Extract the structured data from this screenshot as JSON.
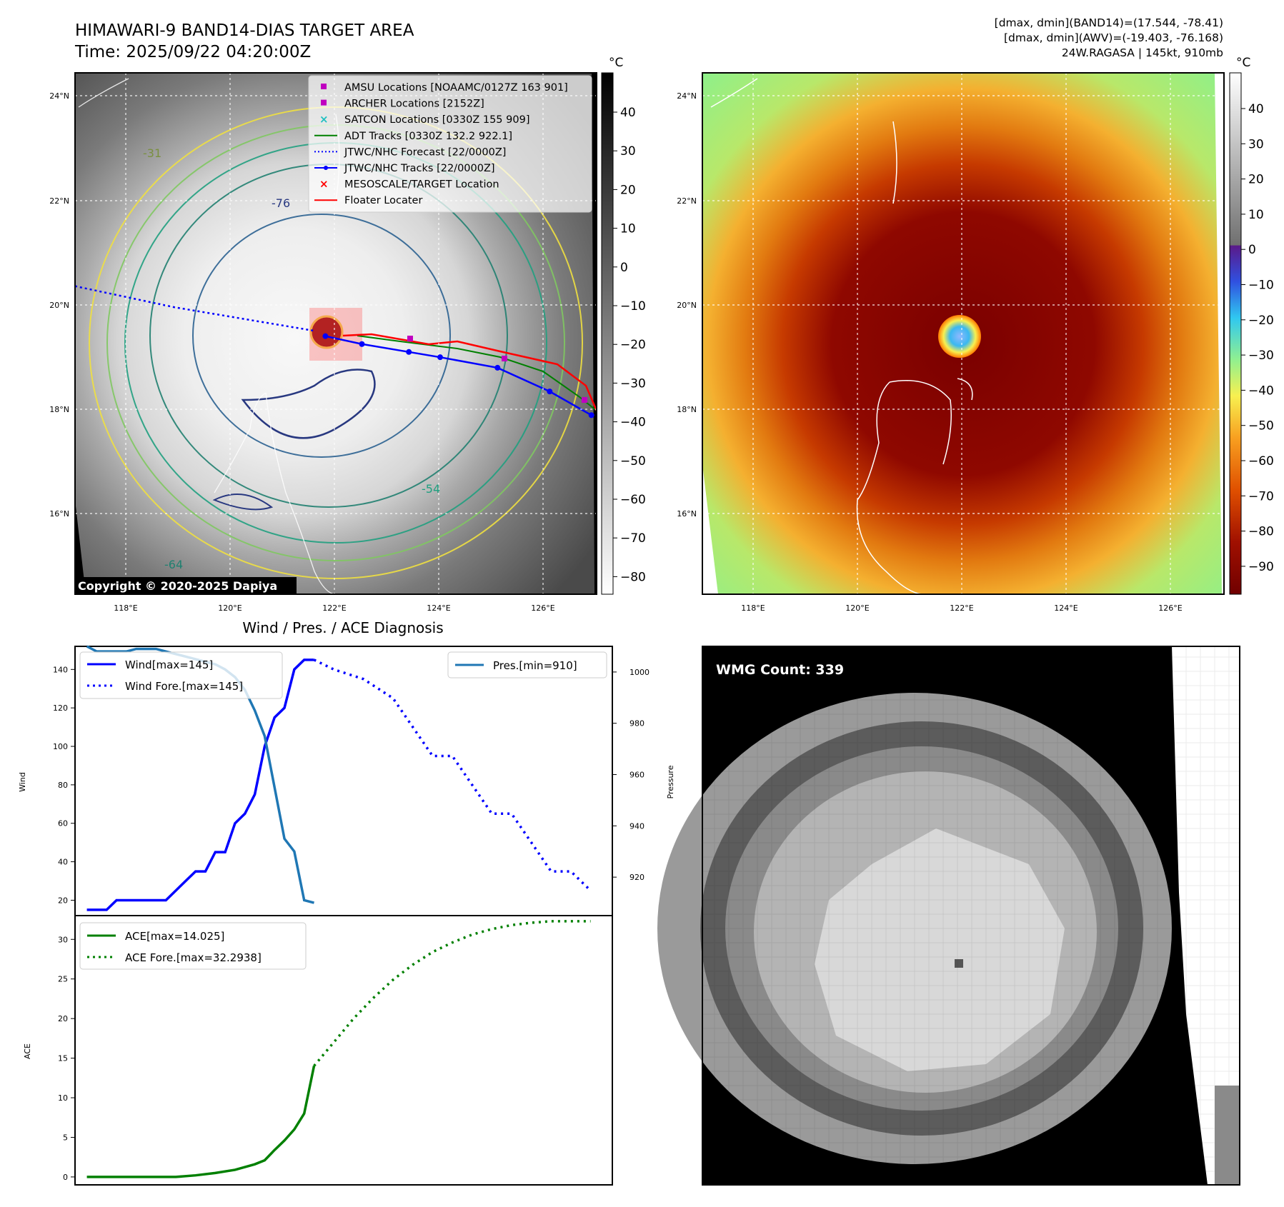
{
  "header": {
    "title_line1": "HIMAWARI-9 BAND14-DIAS TARGET AREA",
    "title_line2": "Time: 2025/09/22 04:20:00Z",
    "info_line1": "[dmax, dmin](BAND14)=(17.544, -78.41)",
    "info_line2": "[dmax, dmin](AWV)=(-19.403, -76.168)",
    "info_line3": "24W.RAGASA | 145kt, 910mb"
  },
  "satellite_panels": {
    "lat_labels": [
      "24°N",
      "22°N",
      "20°N",
      "18°N",
      "16°N"
    ],
    "lon_labels": [
      "118°E",
      "120°E",
      "122°E",
      "124°E",
      "126°E"
    ],
    "copyright": "Copyright © 2020-2025 Dapiya",
    "contour_labels": [
      "-76",
      "-64",
      "-54",
      "-31"
    ],
    "ir_colorbar": {
      "unit": "°C",
      "ticks": [
        "40",
        "30",
        "20",
        "10",
        "0",
        "−10",
        "−20",
        "−30",
        "−40",
        "−50",
        "−60",
        "−70",
        "−80"
      ]
    },
    "color_colorbar": {
      "unit": "°C",
      "ticks": [
        "40",
        "30",
        "20",
        "10",
        "0",
        "−10",
        "−20",
        "−30",
        "−40",
        "−50",
        "−60",
        "−70",
        "−80",
        "−90"
      ]
    },
    "legend": [
      {
        "label": "AMSU Locations [NOAAMC/0127Z 163 901]",
        "color": "#c000c0",
        "marker": "square"
      },
      {
        "label": "ARCHER Locations [2152Z]",
        "color": "#c000c0",
        "marker": "square"
      },
      {
        "label": "SATCON Locations [0330Z 155 909]",
        "color": "#20c0c0",
        "marker": "x"
      },
      {
        "label": "ADT Tracks [0330Z 132.2 922.1]",
        "color": "#008000",
        "marker": "line"
      },
      {
        "label": "JTWC/NHC Forecast [22/0000Z]",
        "color": "#0000ff",
        "marker": "dotted"
      },
      {
        "label": "JTWC/NHC Tracks [22/0000Z]",
        "color": "#0000ff",
        "marker": "line-dot"
      },
      {
        "label": "MESOSCALE/TARGET Location",
        "color": "#ff0000",
        "marker": "x"
      },
      {
        "label": "Floater Locater",
        "color": "#ff0000",
        "marker": "line"
      }
    ],
    "tracks": {
      "forecast_lon": [
        117.1,
        119.0,
        120.5,
        121.7
      ],
      "forecast_lat": [
        20.4,
        20.0,
        19.75,
        19.55
      ],
      "best_lon": [
        121.9,
        122.6,
        123.5,
        124.1,
        125.2,
        126.2,
        127.0
      ],
      "best_lat": [
        19.45,
        19.3,
        19.15,
        19.05,
        18.85,
        18.4,
        17.95
      ]
    }
  },
  "diagnosis": {
    "title": "Wind / Pres. / ACE Diagnosis",
    "wmg_label": "WMG Count: 339"
  },
  "chart_data": [
    {
      "type": "line",
      "title": "Wind / Pres. / ACE Diagnosis",
      "ylabel": "Wind",
      "y2label": "Pressure",
      "ylim": [
        12,
        152
      ],
      "y2lim": [
        905,
        1010
      ],
      "yticks": [
        "20",
        "40",
        "60",
        "80",
        "100",
        "120",
        "140"
      ],
      "y2ticks": [
        "920",
        "940",
        "960",
        "980",
        "1000"
      ],
      "series": [
        {
          "name": "Wind[max=145]",
          "color": "#0000ff",
          "style": "solid",
          "x": [
            0,
            1,
            2,
            3,
            4,
            5,
            6,
            7,
            8,
            9,
            10,
            11,
            12,
            13,
            14,
            15,
            16,
            17,
            18,
            19,
            20,
            21,
            22,
            23
          ],
          "values": [
            15,
            15,
            15,
            20,
            20,
            20,
            20,
            20,
            20,
            25,
            30,
            35,
            35,
            45,
            45,
            60,
            65,
            75,
            100,
            115,
            120,
            140,
            145,
            145
          ]
        },
        {
          "name": "Wind Fore.[max=145]",
          "color": "#0000ff",
          "style": "dotted",
          "x": [
            23,
            25,
            28,
            31,
            33,
            35,
            37,
            39,
            41,
            43,
            45,
            47,
            49,
            51
          ],
          "values": [
            145,
            140,
            135,
            125,
            110,
            95,
            95,
            80,
            65,
            65,
            50,
            35,
            35,
            25
          ]
        },
        {
          "name": "Pres.[min=910]",
          "color": "#1f77b4",
          "style": "solid",
          "axis": "right",
          "x": [
            0,
            1,
            2,
            3,
            4,
            5,
            6,
            7,
            8,
            9,
            10,
            11,
            12,
            13,
            14,
            15,
            16,
            17,
            18,
            19,
            20,
            21,
            22,
            23
          ],
          "values": [
            1010,
            1008,
            1008,
            1008,
            1008,
            1009,
            1009,
            1009,
            1008,
            1007,
            1006,
            1005,
            1004,
            1003,
            1001,
            998,
            993,
            985,
            975,
            955,
            935,
            930,
            911,
            910
          ]
        }
      ]
    },
    {
      "type": "line",
      "ylabel": "ACE",
      "ylim": [
        -1,
        33
      ],
      "yticks": [
        "0",
        "5",
        "10",
        "15",
        "20",
        "25",
        "30"
      ],
      "series": [
        {
          "name": "ACE[max=14.025]",
          "color": "#008000",
          "style": "solid",
          "x": [
            0,
            3,
            6,
            9,
            11,
            13,
            15,
            17,
            18,
            19,
            20,
            21,
            22,
            23
          ],
          "values": [
            0,
            0,
            0,
            0,
            0.2,
            0.5,
            0.9,
            1.6,
            2.1,
            3.4,
            4.6,
            6.0,
            8.0,
            14.025
          ]
        },
        {
          "name": "ACE Fore.[max=32.2938]",
          "color": "#008000",
          "style": "dotted",
          "x": [
            23,
            25,
            27,
            29,
            31,
            33,
            35,
            37,
            39,
            41,
            43,
            45,
            47,
            49,
            51
          ],
          "values": [
            14.025,
            17.0,
            20.0,
            22.6,
            24.9,
            26.8,
            28.4,
            29.6,
            30.6,
            31.3,
            31.8,
            32.1,
            32.29,
            32.29,
            32.29
          ]
        }
      ]
    }
  ]
}
